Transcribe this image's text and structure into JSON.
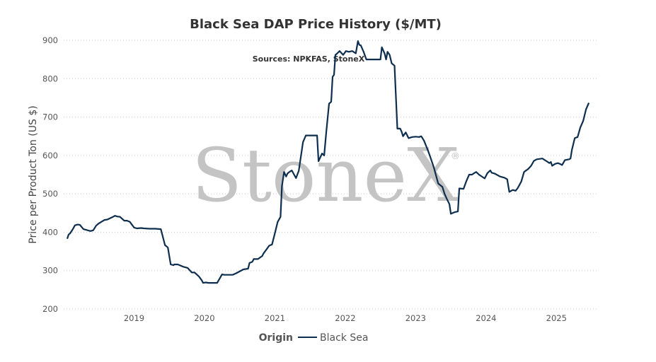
{
  "chart_data": {
    "type": "line",
    "title": "Black Sea DAP Price History ($/MT)",
    "subtitle": "Sources: NPKFAS, StoneX",
    "xlabel": "",
    "ylabel": "Price per Product Ton (US $)",
    "ylim": [
      200,
      900
    ],
    "yticks": [
      200,
      300,
      400,
      500,
      600,
      700,
      800,
      900
    ],
    "xlim": [
      2018.0,
      2025.6
    ],
    "xticks": [
      2019,
      2020,
      2021,
      2022,
      2023,
      2024,
      2025
    ],
    "grid": true,
    "legend": {
      "title": "Origin",
      "position": "bottom-center"
    },
    "watermark": {
      "text": "StoneX",
      "mark": "®"
    },
    "line_color": "#0d2e4e",
    "series": [
      {
        "name": "Black Sea",
        "x": [
          2018.05,
          2018.07,
          2018.09,
          2018.13,
          2018.16,
          2018.2,
          2018.23,
          2018.28,
          2018.3,
          2018.38,
          2018.42,
          2018.46,
          2018.5,
          2018.58,
          2018.62,
          2018.7,
          2018.73,
          2018.76,
          2018.8,
          2018.86,
          2018.9,
          2018.94,
          2019.0,
          2019.04,
          2019.1,
          2019.14,
          2019.22,
          2019.3,
          2019.38,
          2019.44,
          2019.47,
          2019.48,
          2019.52,
          2019.56,
          2019.57,
          2019.62,
          2019.7,
          2019.76,
          2019.82,
          2019.86,
          2019.92,
          2019.96,
          2019.98,
          2020.02,
          2020.06,
          2020.18,
          2020.25,
          2020.28,
          2020.4,
          2020.45,
          2020.55,
          2020.62,
          2020.64,
          2020.68,
          2020.7,
          2020.76,
          2020.82,
          2020.84,
          2020.92,
          2020.96,
          2021.0,
          2021.04,
          2021.08,
          2021.1,
          2021.13,
          2021.16,
          2021.18,
          2021.2,
          2021.24,
          2021.3,
          2021.34,
          2021.4,
          2021.44,
          2021.47,
          2021.5,
          2021.6,
          2021.62,
          2021.67,
          2021.7,
          2021.73,
          2021.77,
          2021.8,
          2021.82,
          2021.84,
          2021.86,
          2021.88,
          2021.92,
          2021.97,
          2022.01,
          2022.05,
          2022.1,
          2022.15,
          2022.18,
          2022.2,
          2022.22,
          2022.26,
          2022.3,
          2022.33,
          2022.5,
          2022.52,
          2022.56,
          2022.58,
          2022.6,
          2022.63,
          2022.66,
          2022.7,
          2022.74,
          2022.78,
          2022.8,
          2022.82,
          2022.86,
          2022.9,
          2022.95,
          2023.0,
          2023.05,
          2023.08,
          2023.12,
          2023.18,
          2023.2,
          2023.26,
          2023.32,
          2023.38,
          2023.41,
          2023.44,
          2023.48,
          2023.5,
          2023.55,
          2023.6,
          2023.62,
          2023.68,
          2023.72,
          2023.76,
          2023.8,
          2023.84,
          2023.86,
          2023.9,
          2023.98,
          2024.02,
          2024.06,
          2024.08,
          2024.12,
          2024.2,
          2024.26,
          2024.3,
          2024.33,
          2024.38,
          2024.42,
          2024.45,
          2024.5,
          2024.54,
          2024.6,
          2024.64,
          2024.68,
          2024.72,
          2024.8,
          2024.86,
          2024.9,
          2024.92,
          2024.94,
          2024.98,
          2025.02,
          2025.05,
          2025.08,
          2025.12,
          2025.18,
          2025.2,
          2025.22,
          2025.26,
          2025.3,
          2025.34,
          2025.38,
          2025.42,
          2025.46
        ],
        "values": [
          383,
          394,
          397,
          408,
          418,
          420,
          419,
          408,
          407,
          403,
          405,
          417,
          423,
          432,
          433,
          440,
          443,
          441,
          440,
          430,
          430,
          427,
          412,
          410,
          411,
          410,
          409,
          409,
          408,
          366,
          362,
          360,
          316,
          314,
          316,
          316,
          310,
          307,
          295,
          295,
          285,
          275,
          268,
          269,
          268,
          268,
          290,
          289,
          289,
          293,
          303,
          305,
          320,
          323,
          330,
          330,
          338,
          345,
          365,
          368,
          397,
          427,
          440,
          520,
          557,
          545,
          553,
          556,
          561,
          541,
          560,
          635,
          652,
          652,
          652,
          652,
          585,
          605,
          600,
          660,
          735,
          740,
          805,
          810,
          862,
          865,
          872,
          862,
          872,
          870,
          872,
          866,
          898,
          888,
          887,
          870,
          850,
          850,
          850,
          882,
          865,
          850,
          870,
          862,
          840,
          834,
          670,
          670,
          662,
          650,
          660,
          645,
          648,
          649,
          648,
          650,
          638,
          610,
          600,
          568,
          527,
          518,
          500,
          488,
          473,
          448,
          452,
          454,
          514,
          513,
          533,
          550,
          550,
          555,
          557,
          550,
          540,
          554,
          561,
          555,
          553,
          545,
          542,
          538,
          505,
          510,
          508,
          515,
          532,
          557,
          565,
          573,
          586,
          590,
          592,
          585,
          580,
          583,
          573,
          578,
          580,
          578,
          575,
          588,
          590,
          592,
          615,
          645,
          648,
          673,
          690,
          720,
          737
        ]
      }
    ]
  }
}
